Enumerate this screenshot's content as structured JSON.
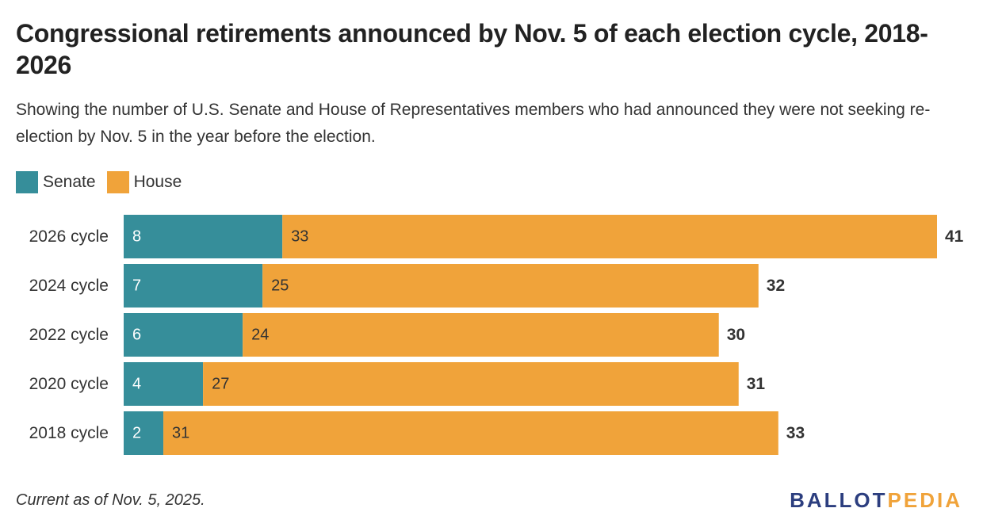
{
  "title": "Congressional retirements announced by Nov. 5 of each election cycle, 2018-2026",
  "subtitle": "Showing the number of U.S. Senate and House of Representatives members who had announced they were not seeking re-election by Nov. 5 in the year before the election.",
  "note": "Current as of Nov. 5, 2025.",
  "logo": {
    "part1": "BALLOT",
    "part2": "PEDIA"
  },
  "colors": {
    "senate": "#368e9a",
    "house": "#f0a33a",
    "text": "#333333",
    "logo_blue": "#2c3e7f"
  },
  "chart_data": {
    "type": "bar",
    "orientation": "horizontal",
    "stacked": true,
    "categories": [
      "2026 cycle",
      "2024 cycle",
      "2022 cycle",
      "2020 cycle",
      "2018 cycle"
    ],
    "series": [
      {
        "name": "Senate",
        "values": [
          8,
          7,
          6,
          4,
          2
        ]
      },
      {
        "name": "House",
        "values": [
          33,
          25,
          24,
          27,
          31
        ]
      }
    ],
    "totals": [
      41,
      32,
      30,
      31,
      33
    ],
    "legend_position": "top-left",
    "grid": false,
    "xlim": [
      0,
      41
    ]
  }
}
